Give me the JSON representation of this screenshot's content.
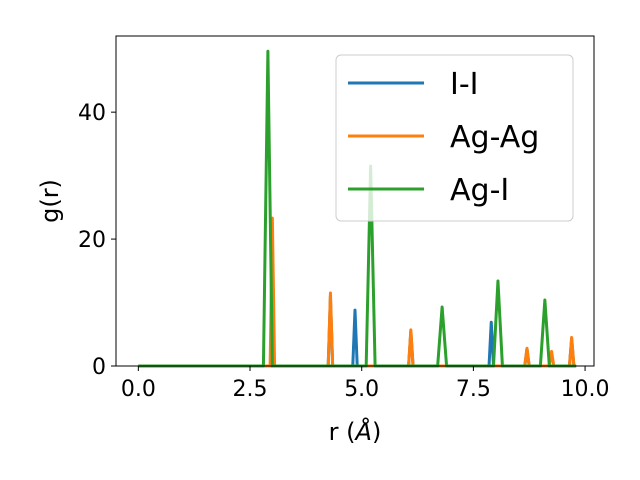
{
  "chart_data": {
    "type": "line",
    "xlabel_prefix": "r (",
    "xlabel_unit": "Å",
    "xlabel_suffix": ")",
    "ylabel": "g(r)",
    "xlim": [
      -0.5,
      10.2
    ],
    "ylim": [
      0,
      52
    ],
    "x_ticks": [
      0.0,
      2.5,
      5.0,
      7.5,
      10.0
    ],
    "x_tick_labels": [
      "0.0",
      "2.5",
      "5.0",
      "7.5",
      "10.0"
    ],
    "y_ticks": [
      0,
      20,
      40
    ],
    "y_tick_labels": [
      "0",
      "20",
      "40"
    ],
    "grid": false,
    "legend_position": "top-right",
    "series": [
      {
        "name": "I-I",
        "color": "#1f77b4",
        "x": [
          0.0,
          4.25,
          4.3,
          4.35,
          4.8,
          4.85,
          4.9,
          6.05,
          6.1,
          6.15,
          7.85,
          7.9,
          7.95,
          8.65,
          8.7,
          8.75,
          9.65,
          9.7,
          9.75,
          9.8
        ],
        "y": [
          0,
          0,
          11.0,
          0,
          0,
          8.8,
          0,
          0,
          5.5,
          0,
          0,
          6.9,
          0,
          0,
          2.7,
          0,
          0,
          4.3,
          0,
          0
        ]
      },
      {
        "name": "Ag-Ag",
        "color": "#ff7f0e",
        "x": [
          0.0,
          2.95,
          3.0,
          3.05,
          4.25,
          4.3,
          4.35,
          6.05,
          6.1,
          6.15,
          8.65,
          8.7,
          8.75,
          9.2,
          9.25,
          9.3,
          9.65,
          9.7,
          9.75,
          9.8
        ],
        "y": [
          0,
          0,
          23.3,
          0,
          0,
          11.5,
          0,
          0,
          5.7,
          0,
          0,
          2.8,
          0,
          0,
          2.3,
          0,
          0,
          4.5,
          0,
          0
        ]
      },
      {
        "name": "Ag-I",
        "color": "#2ca02c",
        "x": [
          0.0,
          2.8,
          2.9,
          3.0,
          5.1,
          5.2,
          5.3,
          6.7,
          6.8,
          6.9,
          7.95,
          8.05,
          8.15,
          9.0,
          9.1,
          9.2,
          9.8
        ],
        "y": [
          0,
          0,
          49.6,
          0,
          0,
          31.5,
          0,
          0,
          9.3,
          0,
          0,
          13.4,
          0,
          0,
          10.4,
          0,
          0
        ]
      }
    ]
  }
}
